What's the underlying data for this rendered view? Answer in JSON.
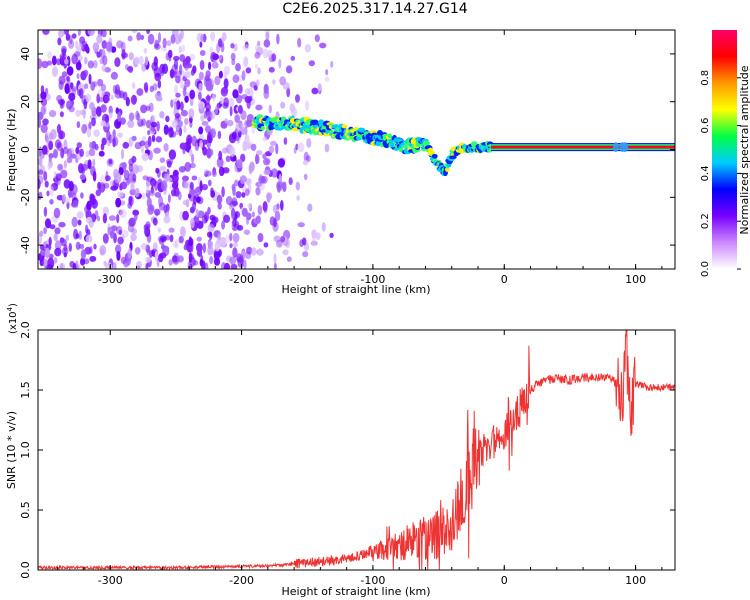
{
  "figure": {
    "title": "C2E6.2025.317.14.27.G14"
  },
  "chart_data": [
    {
      "type": "heatmap",
      "xlabel": "Height of straight line (km)",
      "ylabel": "Frequency (Hz)",
      "xlim": [
        -355,
        130
      ],
      "ylim": [
        -50,
        50
      ],
      "xticks": [
        -300,
        -200,
        -100,
        0,
        100
      ],
      "yticks": [
        -40,
        -20,
        0,
        20,
        40
      ],
      "colorbar": {
        "label": "Normalized spectral amplitude",
        "range": [
          0,
          1
        ],
        "ticks": [
          0.0,
          0.2,
          0.4,
          0.6,
          0.8
        ],
        "tick_labels": [
          "0.0",
          "0.2",
          "0.4",
          "0.6",
          "0.8"
        ],
        "colormap": [
          "#ffffff",
          "#cc88ff",
          "#7700ff",
          "#0000ff",
          "#00ccff",
          "#00ff44",
          "#ffff00",
          "#ff9900",
          "#ff0000",
          "#ff0066"
        ]
      },
      "ridge": [
        {
          "x": -190,
          "y": 11
        },
        {
          "x": -170,
          "y": 11
        },
        {
          "x": -150,
          "y": 10
        },
        {
          "x": -130,
          "y": 8
        },
        {
          "x": -110,
          "y": 6
        },
        {
          "x": -90,
          "y": 4
        },
        {
          "x": -75,
          "y": 1
        },
        {
          "x": -60,
          "y": 3
        },
        {
          "x": -50,
          "y": -7
        },
        {
          "x": -45,
          "y": -9
        },
        {
          "x": -38,
          "y": -1
        },
        {
          "x": -30,
          "y": 1
        },
        {
          "x": -20,
          "y": 1
        },
        {
          "x": -10,
          "y": 1
        },
        {
          "x": 0,
          "y": 1
        },
        {
          "x": 130,
          "y": 1
        }
      ]
    },
    {
      "type": "line",
      "xlabel": "Height of straight line (km)",
      "ylabel": "SNR (10 * v/v)",
      "yscale_label": "(x10",
      "yscale_exp": "4",
      "xlim": [
        -355,
        130
      ],
      "ylim": [
        0,
        2.0
      ],
      "xticks": [
        -300,
        -200,
        -100,
        0,
        100
      ],
      "yticks": [
        0.0,
        0.5,
        1.0,
        1.5,
        2.0
      ],
      "ytick_labels": [
        "0.0",
        "0.5",
        "1.0",
        "1.5",
        "2.0"
      ],
      "series": [
        {
          "color": "#ee3333",
          "x": [
            -355,
            -300,
            -250,
            -200,
            -170,
            -150,
            -130,
            -110,
            -100,
            -90,
            -80,
            -70,
            -60,
            -50,
            -40,
            -30,
            -25,
            -20,
            -15,
            -10,
            0,
            10,
            20,
            30,
            40,
            50,
            60,
            70,
            80,
            85,
            90,
            93,
            96,
            100,
            110,
            120,
            130
          ],
          "y": [
            0.02,
            0.02,
            0.02,
            0.03,
            0.04,
            0.06,
            0.08,
            0.12,
            0.15,
            0.18,
            0.2,
            0.24,
            0.27,
            0.3,
            0.38,
            0.6,
            0.9,
            0.95,
            1.0,
            1.05,
            1.15,
            1.3,
            1.5,
            1.58,
            1.6,
            1.58,
            1.6,
            1.6,
            1.6,
            1.55,
            1.5,
            1.85,
            1.35,
            1.55,
            1.52,
            1.52,
            1.52
          ]
        }
      ]
    }
  ]
}
